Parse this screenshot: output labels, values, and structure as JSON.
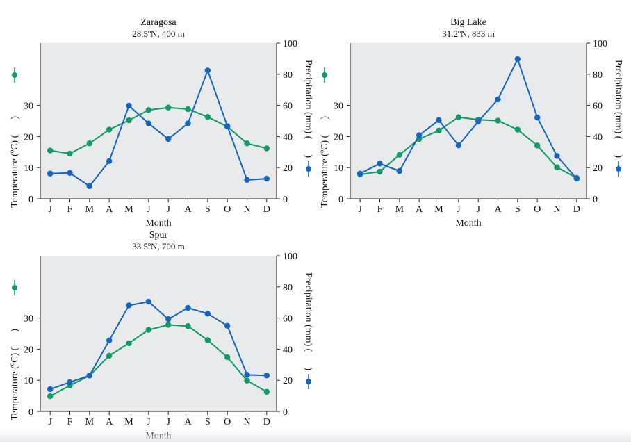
{
  "chart_data": [
    {
      "type": "line",
      "title": "Zaragosa",
      "subtitle": "28.5ºN, 400 m",
      "xlabel": "Month",
      "ylabel_left": "Temperature (ºC) (",
      "ylabel_right": "Precipitation (mm) (",
      "ylabel_close": ")",
      "categories": [
        "J",
        "F",
        "M",
        "A",
        "M",
        "J",
        "J",
        "A",
        "S",
        "O",
        "N",
        "D"
      ],
      "left_ticks": [
        0,
        10,
        20,
        30
      ],
      "right_ticks": [
        0,
        20,
        40,
        60,
        80,
        100
      ],
      "left_range": [
        0,
        50
      ],
      "right_range": [
        0,
        100
      ],
      "series": [
        {
          "name": "Temperature (ºC)",
          "axis": "left",
          "color": "#0f9a6a",
          "values": [
            15.5,
            14.5,
            17.8,
            22.2,
            25.2,
            28.5,
            29.3,
            28.8,
            26.3,
            23.2,
            17.8,
            16.2
          ]
        },
        {
          "name": "Precipitation (mm)",
          "axis": "right",
          "color": "#1565c0",
          "values": [
            16.2,
            16.6,
            8.1,
            24.2,
            59.8,
            48.4,
            38.4,
            48.4,
            82.4,
            46.6,
            12.1,
            12.9
          ]
        }
      ]
    },
    {
      "type": "line",
      "title": "Big Lake",
      "subtitle": "31.2ºN, 833 m",
      "xlabel": "Month",
      "ylabel_left": "Temperature (ºC) (",
      "ylabel_right": "Precipitation (mm) (",
      "ylabel_close": ")",
      "categories": [
        "J",
        "F",
        "M",
        "A",
        "M",
        "J",
        "J",
        "A",
        "S",
        "O",
        "N",
        "D"
      ],
      "left_ticks": [
        0,
        10,
        20,
        30
      ],
      "right_ticks": [
        0,
        20,
        40,
        60,
        80,
        100
      ],
      "left_range": [
        0,
        50
      ],
      "right_range": [
        0,
        100
      ],
      "series": [
        {
          "name": "Temperature (ºC)",
          "axis": "left",
          "color": "#0f9a6a",
          "values": [
            7.8,
            8.7,
            14.1,
            19.2,
            21.9,
            26.2,
            25.4,
            25.1,
            22.2,
            17.1,
            10.1,
            6.7
          ]
        },
        {
          "name": "Precipitation (mm)",
          "axis": "right",
          "color": "#1565c0",
          "values": [
            16.2,
            22.6,
            17.8,
            40.8,
            50.5,
            34.3,
            49.7,
            63.8,
            89.7,
            52.2,
            27.5,
            12.9
          ]
        }
      ]
    },
    {
      "type": "line",
      "title": "Spur",
      "subtitle": "33.5ºN, 700 m",
      "xlabel": "Month",
      "ylabel_left": "Temperature (ºC) (",
      "ylabel_right": "Precipitation (mm) (",
      "ylabel_close": ")",
      "categories": [
        "J",
        "F",
        "M",
        "A",
        "M",
        "J",
        "J",
        "A",
        "S",
        "O",
        "N",
        "D"
      ],
      "left_ticks": [
        0,
        10,
        20,
        30
      ],
      "right_ticks": [
        0,
        20,
        40,
        60,
        80,
        100
      ],
      "left_range": [
        0,
        50
      ],
      "right_range": [
        0,
        100
      ],
      "series": [
        {
          "name": "Temperature (ºC)",
          "axis": "left",
          "color": "#0f9a6a",
          "values": [
            4.9,
            8.3,
            11.5,
            17.9,
            21.9,
            26.2,
            27.8,
            27.4,
            22.9,
            17.4,
            9.9,
            6.3
          ]
        },
        {
          "name": "Precipitation (mm)",
          "axis": "right",
          "color": "#1565c0",
          "values": [
            14.3,
            18.7,
            23.1,
            45.6,
            68.1,
            70.5,
            59.3,
            66.5,
            62.8,
            55.0,
            23.5,
            23.1
          ]
        }
      ]
    }
  ]
}
